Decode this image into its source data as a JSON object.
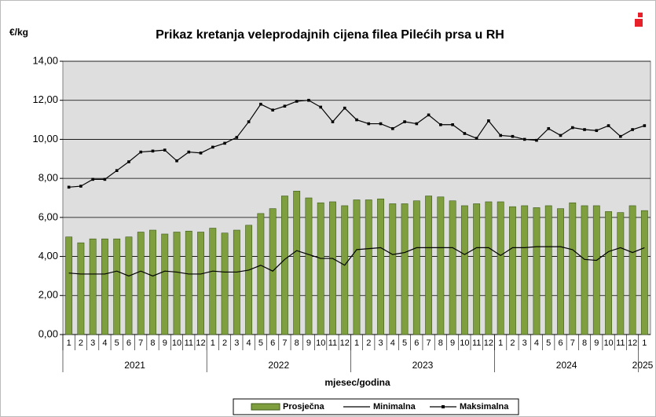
{
  "chart_data": {
    "type": "bar_line",
    "title": "Prikaz kretanja veleprodajnih cijena filea Pilećih prsa u RH",
    "y_label": "€/kg",
    "x_label": "mjesec/godina",
    "groups": [
      {
        "label": "2021",
        "categories": [
          "1",
          "2",
          "3",
          "4",
          "5",
          "6",
          "7",
          "8",
          "9",
          "10",
          "11",
          "12"
        ]
      },
      {
        "label": "2022",
        "categories": [
          "1",
          "2",
          "3",
          "4",
          "5",
          "6",
          "7",
          "8",
          "9",
          "10",
          "11",
          "12"
        ]
      },
      {
        "label": "2023",
        "categories": [
          "1",
          "2",
          "3",
          "4",
          "5",
          "6",
          "7",
          "8",
          "9",
          "10",
          "11",
          "12"
        ]
      },
      {
        "label": "2024",
        "categories": [
          "1",
          "2",
          "3",
          "4",
          "5",
          "6",
          "7",
          "8",
          "9",
          "10",
          "11",
          "12"
        ]
      },
      {
        "label": "2025",
        "categories": [
          "1"
        ]
      }
    ],
    "ylim": [
      0,
      14
    ],
    "yticks": [
      {
        "value": 0,
        "label": "0,00"
      },
      {
        "value": 2,
        "label": "2,00"
      },
      {
        "value": 4,
        "label": "4,00"
      },
      {
        "value": 6,
        "label": "6,00"
      },
      {
        "value": 8,
        "label": "8,00"
      },
      {
        "value": 10,
        "label": "10,00"
      },
      {
        "value": 12,
        "label": "12,00"
      },
      {
        "value": 14,
        "label": "14,00"
      }
    ],
    "grid": true,
    "series": [
      {
        "name": "Prosječna",
        "kind": "bar",
        "color": "#7f9f3f",
        "values": [
          5.0,
          4.7,
          4.9,
          4.9,
          4.9,
          5.0,
          5.25,
          5.35,
          5.15,
          5.25,
          5.3,
          5.25,
          5.45,
          5.2,
          5.35,
          5.6,
          6.2,
          6.45,
          7.1,
          7.35,
          7.0,
          6.75,
          6.8,
          6.6,
          6.9,
          6.9,
          6.95,
          6.7,
          6.7,
          6.85,
          7.1,
          7.05,
          6.85,
          6.6,
          6.7,
          6.8,
          6.8,
          6.55,
          6.6,
          6.5,
          6.6,
          6.45,
          6.75,
          6.6,
          6.6,
          6.3,
          6.25,
          6.6,
          6.35
        ]
      },
      {
        "name": "Minimalna",
        "kind": "line",
        "color": "#000000",
        "values": [
          3.15,
          3.1,
          3.1,
          3.1,
          3.25,
          3.0,
          3.25,
          3.0,
          3.25,
          3.2,
          3.1,
          3.1,
          3.25,
          3.2,
          3.2,
          3.3,
          3.55,
          3.25,
          3.85,
          4.3,
          4.1,
          3.9,
          3.9,
          3.55,
          4.35,
          4.4,
          4.45,
          4.1,
          4.2,
          4.45,
          4.45,
          4.45,
          4.45,
          4.1,
          4.45,
          4.45,
          4.05,
          4.45,
          4.45,
          4.5,
          4.5,
          4.5,
          4.35,
          3.85,
          3.8,
          4.25,
          4.45,
          4.2,
          4.45
        ]
      },
      {
        "name": "Maksimalna",
        "kind": "line_marker",
        "color": "#000000",
        "values": [
          7.55,
          7.6,
          7.95,
          7.95,
          8.4,
          8.85,
          9.35,
          9.4,
          9.45,
          8.9,
          9.35,
          9.3,
          9.6,
          9.8,
          10.1,
          10.9,
          11.8,
          11.5,
          11.7,
          11.95,
          12.0,
          11.65,
          10.9,
          11.6,
          11.0,
          10.8,
          10.8,
          10.55,
          10.9,
          10.8,
          11.25,
          10.75,
          10.75,
          10.3,
          10.05,
          10.95,
          10.2,
          10.15,
          10.0,
          9.95,
          10.55,
          10.2,
          10.6,
          10.5,
          10.45,
          10.7,
          10.15,
          10.5,
          10.7
        ]
      }
    ]
  }
}
